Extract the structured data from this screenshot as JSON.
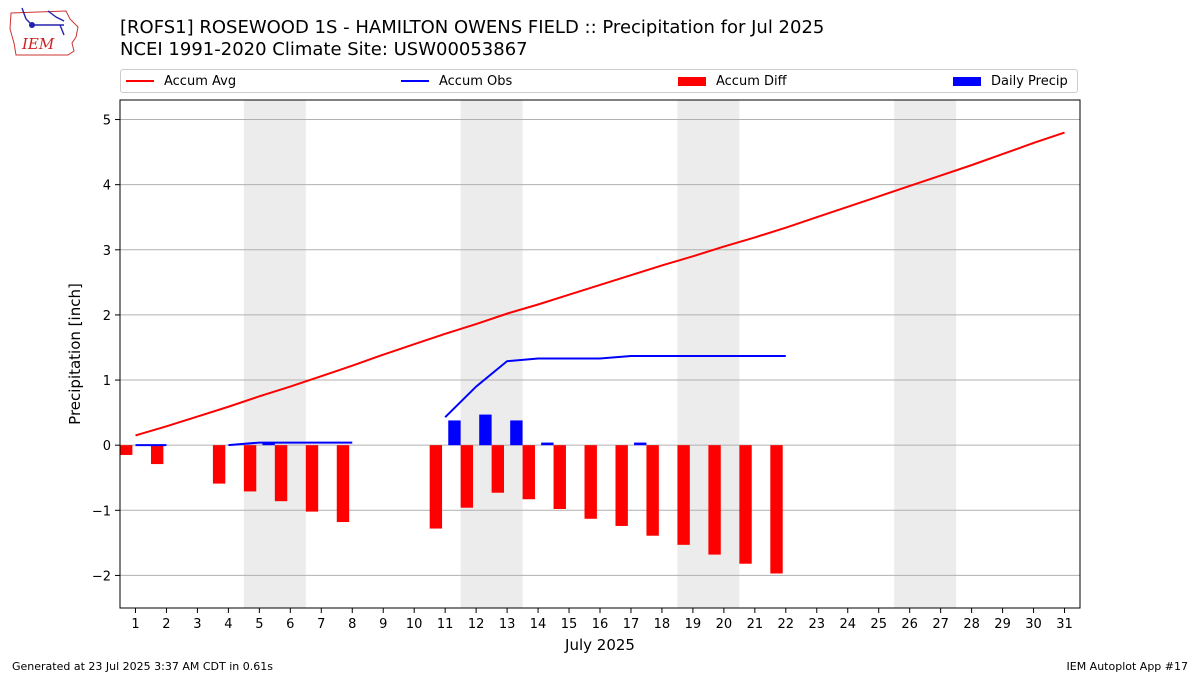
{
  "header": {
    "title_line1": "[ROFS1] ROSEWOOD 1S - HAMILTON OWENS FIELD :: Precipitation for Jul 2025",
    "title_line2": "NCEI 1991-2020 Climate Site: USW00053867",
    "logo_text": "IEM"
  },
  "footer": {
    "generated": "Generated at 23 Jul 2025 3:37 AM CDT in 0.61s",
    "app": "IEM Autoplot App #17"
  },
  "colors": {
    "accum_avg": "#ff0000",
    "accum_obs": "#0000ff",
    "accum_diff": "#ff0000",
    "daily_precip": "#0000ff",
    "weekend_band": "#ececec",
    "grid": "#b0b0b0"
  },
  "chart_data": {
    "type": "bar",
    "xlabel": "July 2025",
    "ylabel": "Precipitation [inch]",
    "ylim": [
      -2.5,
      5.3
    ],
    "xlim": [
      0.5,
      31.5
    ],
    "yticks": [
      -2,
      -1,
      0,
      1,
      2,
      3,
      4,
      5
    ],
    "ytick_labels": [
      "−2",
      "−1",
      "0",
      "1",
      "2",
      "3",
      "4",
      "5"
    ],
    "x": [
      1,
      2,
      3,
      4,
      5,
      6,
      7,
      8,
      9,
      10,
      11,
      12,
      13,
      14,
      15,
      16,
      17,
      18,
      19,
      20,
      21,
      22,
      23,
      24,
      25,
      26,
      27,
      28,
      29,
      30,
      31
    ],
    "xtick_labels": [
      "1",
      "2",
      "3",
      "4",
      "5",
      "6",
      "7",
      "8",
      "9",
      "10",
      "11",
      "12",
      "13",
      "14",
      "15",
      "16",
      "17",
      "18",
      "19",
      "20",
      "21",
      "22",
      "23",
      "24",
      "25",
      "26",
      "27",
      "28",
      "29",
      "30",
      "31"
    ],
    "weekend_bands": [
      [
        4.5,
        6.5
      ],
      [
        11.5,
        13.5
      ],
      [
        18.5,
        20.5
      ],
      [
        25.5,
        27.5
      ]
    ],
    "grid": "y",
    "legend_position": "top",
    "legend": [
      "Accum Avg",
      "Accum Obs",
      "Accum Diff",
      "Daily Precip"
    ],
    "series": [
      {
        "name": "Accum Avg",
        "type": "line",
        "x": [
          1,
          2,
          3,
          4,
          5,
          6,
          7,
          8,
          9,
          10,
          11,
          12,
          13,
          14,
          15,
          16,
          17,
          18,
          19,
          20,
          21,
          22,
          23,
          24,
          25,
          26,
          27,
          28,
          29,
          30,
          31
        ],
        "values": [
          0.15,
          0.29,
          0.44,
          0.59,
          0.75,
          0.9,
          1.06,
          1.22,
          1.39,
          1.55,
          1.71,
          1.86,
          2.02,
          2.16,
          2.31,
          2.46,
          2.61,
          2.76,
          2.9,
          3.05,
          3.19,
          3.34,
          3.5,
          3.66,
          3.82,
          3.98,
          4.14,
          4.3,
          4.47,
          4.64,
          4.8
        ]
      },
      {
        "name": "Accum Obs",
        "type": "line",
        "segments": [
          {
            "x": [
              1,
              2
            ],
            "values": [
              0.0,
              0.0
            ]
          },
          {
            "x": [
              4,
              5,
              6,
              7,
              8
            ],
            "values": [
              0.0,
              0.04,
              0.04,
              0.04,
              0.04
            ]
          },
          {
            "x": [
              11,
              12,
              13,
              14,
              15,
              16,
              17,
              18,
              19,
              20,
              21,
              22
            ],
            "values": [
              0.43,
              0.9,
              1.29,
              1.33,
              1.33,
              1.33,
              1.37,
              1.37,
              1.37,
              1.37,
              1.37,
              1.37
            ]
          }
        ]
      },
      {
        "name": "Accum Diff",
        "type": "bar",
        "x": [
          1,
          2,
          4,
          5,
          6,
          7,
          8,
          11,
          12,
          13,
          14,
          15,
          16,
          17,
          18,
          19,
          20,
          21,
          22
        ],
        "values": [
          -0.15,
          -0.29,
          -0.59,
          -0.71,
          -0.86,
          -1.02,
          -1.18,
          -1.28,
          -0.96,
          -0.73,
          -0.83,
          -0.98,
          -1.13,
          -1.24,
          -1.39,
          -1.53,
          -1.68,
          -1.82,
          -1.97
        ]
      },
      {
        "name": "Daily Precip",
        "type": "bar",
        "x": [
          5,
          11,
          12,
          13,
          14,
          17
        ],
        "values": [
          0.04,
          0.38,
          0.47,
          0.38,
          0.04,
          0.04
        ]
      }
    ]
  }
}
